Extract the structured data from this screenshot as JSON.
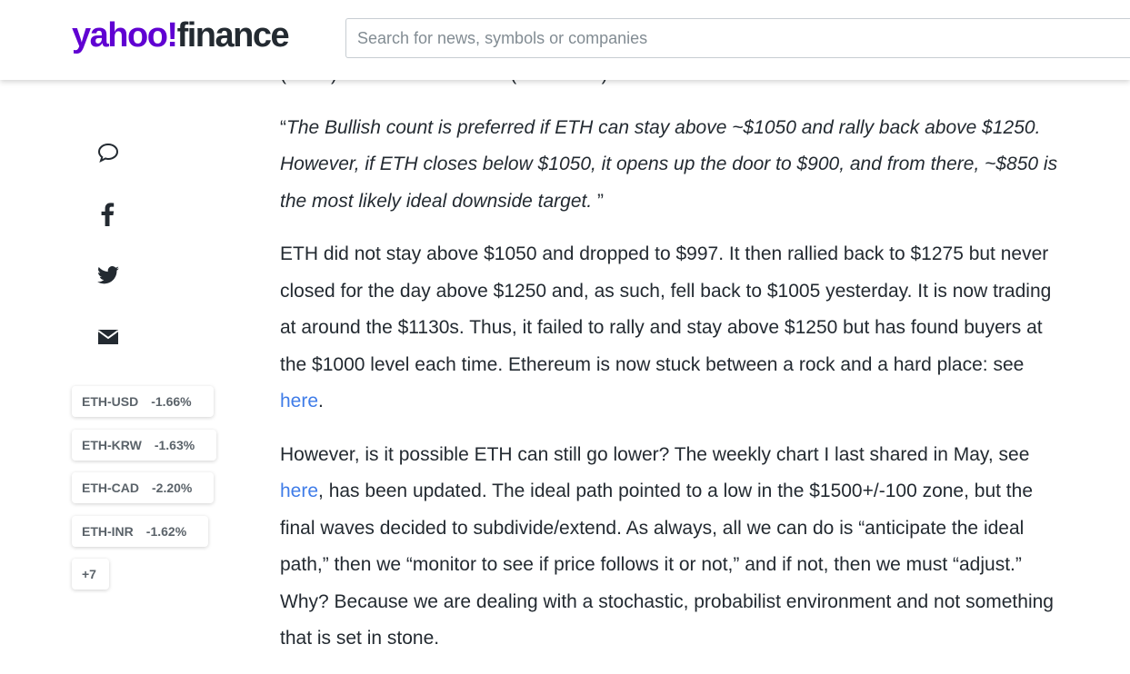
{
  "header": {
    "logo_yahoo": "yahoo!",
    "logo_finance": "finance",
    "search_placeholder": "Search for news, symbols or companies"
  },
  "tickers": [
    {
      "symbol": "ETH-USD",
      "change": "-1.66%"
    },
    {
      "symbol": "ETH-KRW",
      "change": "-1.63%"
    },
    {
      "symbol": "ETH-CAD",
      "change": "-2.20%"
    },
    {
      "symbol": "ETH-INR",
      "change": "-1.62%"
    }
  ],
  "more_tickers": "+7",
  "article": {
    "paragraphs": [
      {
        "parts": [
          {
            "text": "(ETH-) count for "
          },
          {
            "text": "Ethereum",
            "link": true
          },
          {
            "text": " (ETH-USD). Read:"
          }
        ]
      },
      {
        "parts": [
          {
            "text": "“"
          },
          {
            "text": "The Bullish count is preferred if ETH can stay above ~$1050 and rally back above $1250. However, if ETH closes below $1050, it opens up the door to $900, and from there, ~$850 is the most likely ideal downside target.",
            "italic": true
          },
          {
            "text": " ”"
          }
        ]
      },
      {
        "parts": [
          {
            "text": "ETH did not stay above $1050 and dropped to $997. It then rallied back to $1275 but never closed for the day above $1250 and, as such, fell back to $1005 yesterday. It is now trading at around the $1130s. Thus, it failed to rally and stay above $1250 but has found buyers at the $1000 level each time. Ethereum is now stuck between a rock and a hard place: see "
          },
          {
            "text": "here",
            "link": true
          },
          {
            "text": "."
          }
        ]
      },
      {
        "parts": [
          {
            "text": "However, is it possible ETH can still go lower? The weekly chart I last shared in May, see "
          },
          {
            "text": "here",
            "link": true
          },
          {
            "text": ", has been updated. The ideal path pointed to a low in the $1500+/-100 zone, but the final waves decided to subdivide/extend. As always, all we can do is “anticipate the ideal path,” then we “monitor to see if price follows it or not,” and if not, then we must “adjust.” Why? Because we are dealing with a stochastic, probabilist environment and not something that is set in stone."
          }
        ]
      }
    ]
  }
}
